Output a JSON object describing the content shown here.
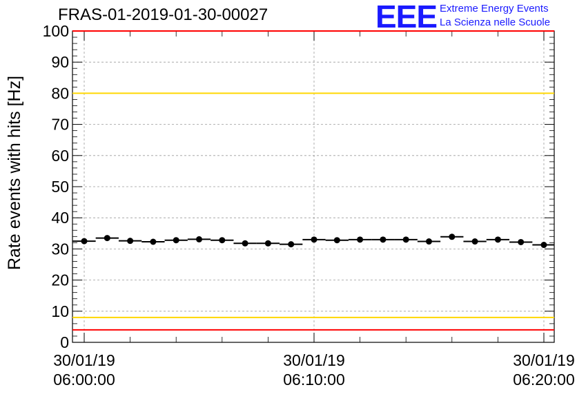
{
  "header": {
    "title": "FRAS-01-2019-01-30-00027",
    "logo_text": "EEE",
    "logo_line1": "Extreme Energy Events",
    "logo_line2": "La Scienza nelle Scuole"
  },
  "colors": {
    "limit_red": "#ff0000",
    "limit_yellow": "#ffd700",
    "logo_blue": "#1a1aff",
    "points": "#000000"
  },
  "chart_data": {
    "type": "scatter",
    "title": "FRAS-01-2019-01-30-00027",
    "xlabel": "",
    "ylabel": "Rate events with hits [Hz]",
    "ylim": [
      0,
      100
    ],
    "yticks": [
      0,
      10,
      20,
      30,
      40,
      50,
      60,
      70,
      80,
      90,
      100
    ],
    "xticks": [
      {
        "line1": "30/01/19",
        "line2": "06:00:00"
      },
      {
        "line1": "30/01/19",
        "line2": "06:10:00"
      },
      {
        "line1": "30/01/19",
        "line2": "06:20:00"
      }
    ],
    "grid": true,
    "reference_lines": [
      {
        "y": 100,
        "color": "red"
      },
      {
        "y": 80,
        "color": "yellow"
      },
      {
        "y": 8,
        "color": "yellow"
      },
      {
        "y": 4,
        "color": "red"
      }
    ],
    "series": [
      {
        "x": [
          "06:00:00",
          "06:01:00",
          "06:02:00",
          "06:03:00",
          "06:04:00",
          "06:05:00",
          "06:06:00",
          "06:07:00",
          "06:08:00",
          "06:09:00",
          "06:10:00",
          "06:11:00",
          "06:12:00",
          "06:13:00",
          "06:14:00",
          "06:15:00",
          "06:16:00",
          "06:17:00",
          "06:18:00",
          "06:19:00",
          "06:20:00"
        ],
        "values": [
          32.5,
          33.5,
          32.6,
          32.3,
          32.8,
          33.1,
          32.8,
          31.8,
          31.8,
          31.5,
          33.0,
          32.8,
          33.0,
          33.0,
          33.0,
          32.4,
          33.9,
          32.4,
          33.0,
          32.2,
          31.3
        ],
        "bin_width_minutes": 1
      }
    ]
  }
}
